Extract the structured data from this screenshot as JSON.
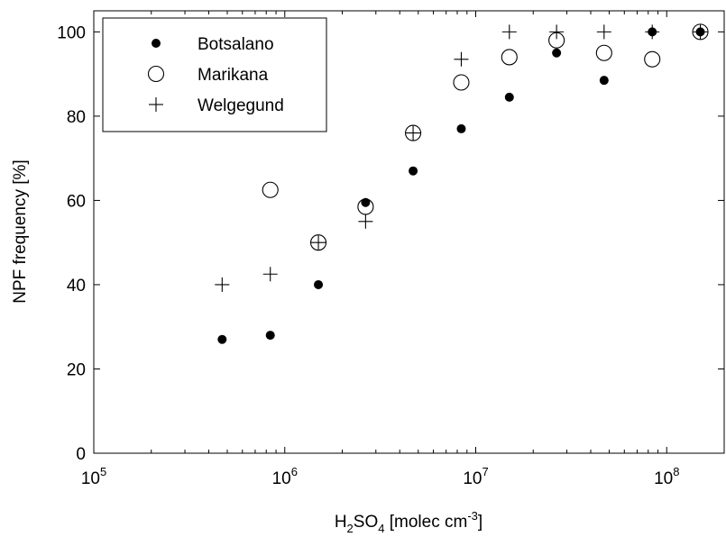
{
  "chart_data": {
    "type": "scatter",
    "xscale": "log",
    "xlim": [
      100000,
      200000000
    ],
    "ylim": [
      0,
      105
    ],
    "xlabel": {
      "base": "H",
      "sub1": "2",
      "mid": "SO",
      "sub2": "4",
      "rest": " [molec cm",
      "sup": "-3",
      "end": "]"
    },
    "ylabel": "NPF frequency [%]",
    "xticks": [
      {
        "value": 100000,
        "base": "10",
        "exp": "5"
      },
      {
        "value": 1000000,
        "base": "10",
        "exp": "6"
      },
      {
        "value": 10000000,
        "base": "10",
        "exp": "7"
      },
      {
        "value": 100000000,
        "base": "10",
        "exp": "8"
      }
    ],
    "yticks": [
      0,
      20,
      40,
      60,
      80,
      100
    ],
    "grid": false,
    "legend_position": "top-left",
    "series": [
      {
        "name": "Botsalano",
        "marker": "filled-circle",
        "x": [
          470000,
          840000,
          1500000,
          2650000,
          4700000,
          8400000,
          15000000,
          26500000,
          47000000,
          84000000,
          150000000
        ],
        "y": [
          27,
          28,
          40,
          59.5,
          67,
          77,
          84.5,
          95,
          88.5,
          100,
          100
        ]
      },
      {
        "name": "Marikana",
        "marker": "open-circle",
        "x": [
          840000,
          1500000,
          2650000,
          4700000,
          8400000,
          15000000,
          26500000,
          47000000,
          84000000,
          150000000
        ],
        "y": [
          62.5,
          50,
          58.5,
          76,
          88,
          94,
          98,
          95,
          93.5,
          100
        ]
      },
      {
        "name": "Welgegund",
        "marker": "plus",
        "x": [
          470000,
          840000,
          1500000,
          2650000,
          4700000,
          8400000,
          15000000,
          26500000,
          47000000,
          84000000,
          150000000
        ],
        "y": [
          40,
          42.5,
          50,
          55,
          76,
          93.5,
          100,
          100,
          100,
          100,
          100
        ]
      }
    ]
  }
}
